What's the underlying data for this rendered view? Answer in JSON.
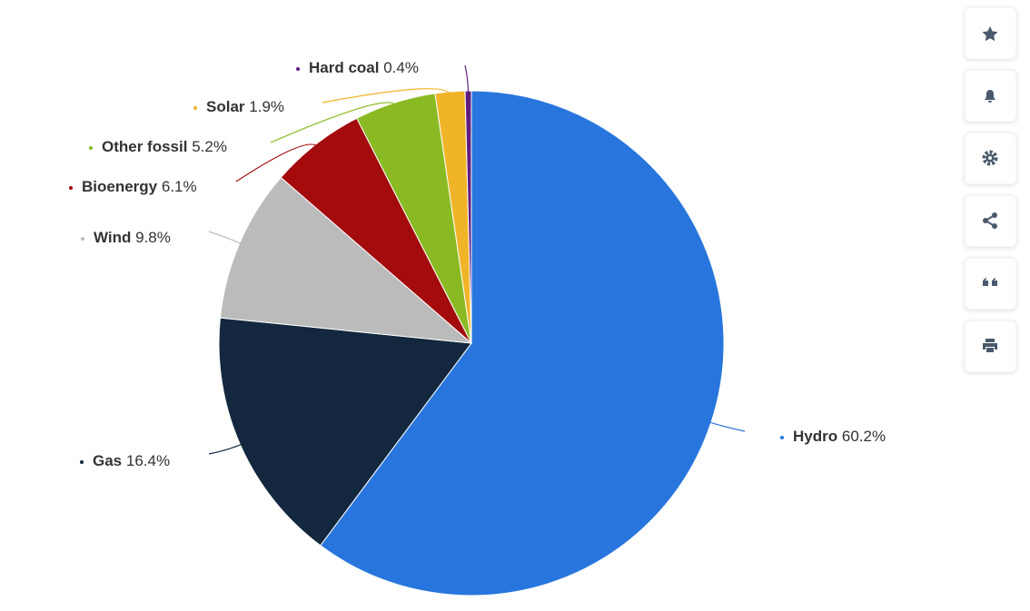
{
  "chart_data": {
    "type": "pie",
    "categories": [
      "Hydro",
      "Gas",
      "Wind",
      "Bioenergy",
      "Other fossil",
      "Solar",
      "Hard coal"
    ],
    "values": [
      60.2,
      16.4,
      9.8,
      6.1,
      5.2,
      1.9,
      0.4
    ],
    "value_labels": [
      "60.2%",
      "16.4%",
      "9.8%",
      "6.1%",
      "5.2%",
      "1.9%",
      "0.4%"
    ],
    "colors": [
      "#2876dd",
      "#13283e",
      "#bbbbbb",
      "#a30b0d",
      "#8aba23",
      "#f0b428",
      "#5f1d80"
    ]
  }
}
